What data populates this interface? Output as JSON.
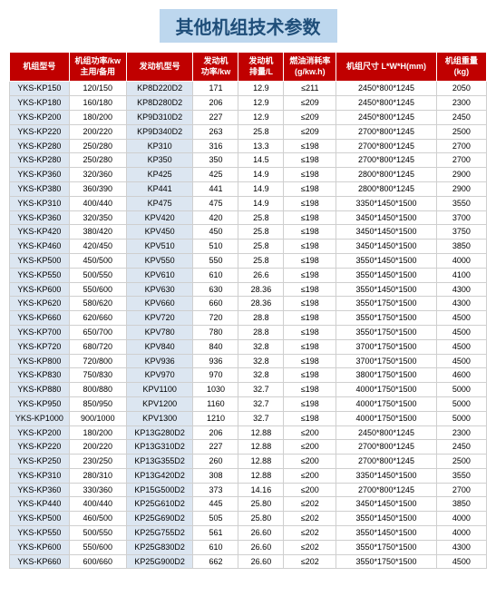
{
  "title": "其他机组技术参数",
  "columns": [
    "机组型号",
    "机组功率/kw\n主用/备用",
    "发动机型号",
    "发动机\n功率/kw",
    "发动机\n排量/L",
    "燃油消耗率\n(g/kw.h)",
    "机组尺寸 L*W*H(mm)",
    "机组重量\n(kg)"
  ],
  "rows": [
    [
      "YKS-KP150",
      "120/150",
      "KP8D220D2",
      "171",
      "12.9",
      "≤211",
      "2450*800*1245",
      "2050"
    ],
    [
      "YKS-KP180",
      "160/180",
      "KP8D280D2",
      "206",
      "12.9",
      "≤209",
      "2450*800*1245",
      "2300"
    ],
    [
      "YKS-KP200",
      "180/200",
      "KP9D310D2",
      "227",
      "12.9",
      "≤209",
      "2450*800*1245",
      "2450"
    ],
    [
      "YKS-KP220",
      "200/220",
      "KP9D340D2",
      "263",
      "25.8",
      "≤209",
      "2700*800*1245",
      "2500"
    ],
    [
      "YKS-KP280",
      "250/280",
      "KP310",
      "316",
      "13.3",
      "≤198",
      "2700*800*1245",
      "2700"
    ],
    [
      "YKS-KP280",
      "250/280",
      "KP350",
      "350",
      "14.5",
      "≤198",
      "2700*800*1245",
      "2700"
    ],
    [
      "YKS-KP360",
      "320/360",
      "KP425",
      "425",
      "14.9",
      "≤198",
      "2800*800*1245",
      "2900"
    ],
    [
      "YKS-KP380",
      "360/390",
      "KP441",
      "441",
      "14.9",
      "≤198",
      "2800*800*1245",
      "2900"
    ],
    [
      "YKS-KP310",
      "400/440",
      "KP475",
      "475",
      "14.9",
      "≤198",
      "3350*1450*1500",
      "3550"
    ],
    [
      "YKS-KP360",
      "320/350",
      "KPV420",
      "420",
      "25.8",
      "≤198",
      "3450*1450*1500",
      "3700"
    ],
    [
      "YKS-KP420",
      "380/420",
      "KPV450",
      "450",
      "25.8",
      "≤198",
      "3450*1450*1500",
      "3750"
    ],
    [
      "YKS-KP460",
      "420/450",
      "KPV510",
      "510",
      "25.8",
      "≤198",
      "3450*1450*1500",
      "3850"
    ],
    [
      "YKS-KP500",
      "450/500",
      "KPV550",
      "550",
      "25.8",
      "≤198",
      "3550*1450*1500",
      "4000"
    ],
    [
      "YKS-KP550",
      "500/550",
      "KPV610",
      "610",
      "26.6",
      "≤198",
      "3550*1450*1500",
      "4100"
    ],
    [
      "YKS-KP600",
      "550/600",
      "KPV630",
      "630",
      "28.36",
      "≤198",
      "3550*1450*1500",
      "4300"
    ],
    [
      "YKS-KP620",
      "580/620",
      "KPV660",
      "660",
      "28.36",
      "≤198",
      "3550*1750*1500",
      "4300"
    ],
    [
      "YKS-KP660",
      "620/660",
      "KPV720",
      "720",
      "28.8",
      "≤198",
      "3550*1750*1500",
      "4500"
    ],
    [
      "YKS-KP700",
      "650/700",
      "KPV780",
      "780",
      "28.8",
      "≤198",
      "3550*1750*1500",
      "4500"
    ],
    [
      "YKS-KP720",
      "680/720",
      "KPV840",
      "840",
      "32.8",
      "≤198",
      "3700*1750*1500",
      "4500"
    ],
    [
      "YKS-KP800",
      "720/800",
      "KPV936",
      "936",
      "32.8",
      "≤198",
      "3700*1750*1500",
      "4500"
    ],
    [
      "YKS-KP830",
      "750/830",
      "KPV970",
      "970",
      "32.8",
      "≤198",
      "3800*1750*1500",
      "4600"
    ],
    [
      "YKS-KP880",
      "800/880",
      "KPV1100",
      "1030",
      "32.7",
      "≤198",
      "4000*1750*1500",
      "5000"
    ],
    [
      "YKS-KP950",
      "850/950",
      "KPV1200",
      "1160",
      "32.7",
      "≤198",
      "4000*1750*1500",
      "5000"
    ],
    [
      "YKS-KP1000",
      "900/1000",
      "KPV1300",
      "1210",
      "32.7",
      "≤198",
      "4000*1750*1500",
      "5000"
    ],
    [
      "YKS-KP200",
      "180/200",
      "KP13G280D2",
      "206",
      "12.88",
      "≤200",
      "2450*800*1245",
      "2300"
    ],
    [
      "YKS-KP220",
      "200/220",
      "KP13G310D2",
      "227",
      "12.88",
      "≤200",
      "2700*800*1245",
      "2450"
    ],
    [
      "YKS-KP250",
      "230/250",
      "KP13G355D2",
      "260",
      "12.88",
      "≤200",
      "2700*800*1245",
      "2500"
    ],
    [
      "YKS-KP310",
      "280/310",
      "KP13G420D2",
      "308",
      "12.88",
      "≤200",
      "3350*1450*1500",
      "3550"
    ],
    [
      "YKS-KP360",
      "330/360",
      "KP15G500D2",
      "373",
      "14.16",
      "≤200",
      "2700*800*1245",
      "2700"
    ],
    [
      "YKS-KP440",
      "400/440",
      "KP25G610D2",
      "445",
      "25.80",
      "≤202",
      "3450*1450*1500",
      "3850"
    ],
    [
      "YKS-KP500",
      "460/500",
      "KP25G690D2",
      "505",
      "25.80",
      "≤202",
      "3550*1450*1500",
      "4000"
    ],
    [
      "YKS-KP550",
      "500/550",
      "KP25G755D2",
      "561",
      "26.60",
      "≤202",
      "3550*1450*1500",
      "4000"
    ],
    [
      "YKS-KP600",
      "550/600",
      "KP25G830D2",
      "610",
      "26.60",
      "≤202",
      "3550*1750*1500",
      "4300"
    ],
    [
      "YKS-KP660",
      "600/660",
      "KP25G900D2",
      "662",
      "26.60",
      "≤202",
      "3550*1750*1500",
      "4500"
    ]
  ]
}
